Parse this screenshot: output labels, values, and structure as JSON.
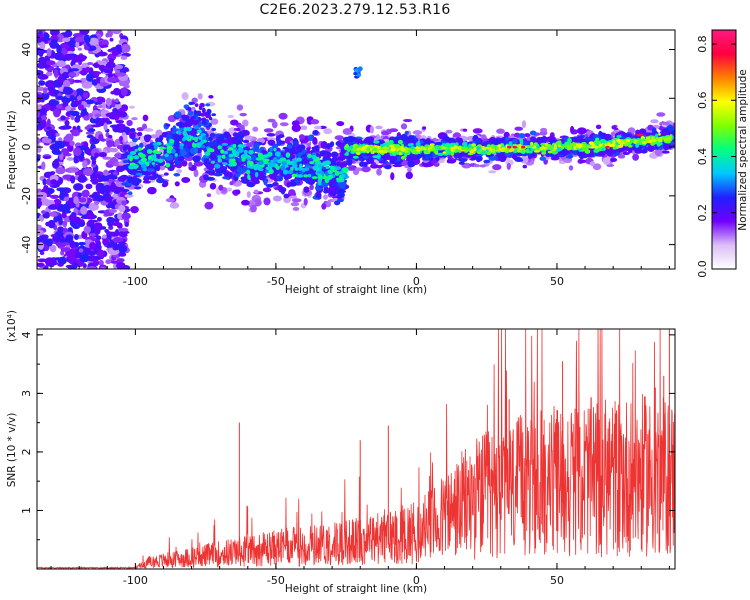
{
  "title": "C2E6.2023.279.12.53.R16",
  "chart_data": [
    {
      "type": "heatmap",
      "xlabel": "Height of straight line (km)",
      "ylabel": "Frequency (Hz)",
      "xlim": [
        -135,
        92
      ],
      "ylim": [
        -50,
        48
      ],
      "x_ticks": [
        -100,
        -50,
        0,
        50
      ],
      "y_ticks": [
        -40,
        -20,
        0,
        20,
        40
      ],
      "colorbar": {
        "label": "Normalized spectral amplitude",
        "range": [
          0,
          0.85
        ],
        "ticks": [
          "0.0",
          "0.2",
          "0.4",
          "0.6",
          "0.8"
        ],
        "colors": [
          "#ffffff",
          "#dcbef8",
          "#7000ff",
          "#2020ff",
          "#00c8ff",
          "#00ff80",
          "#80ff00",
          "#ffff00",
          "#ff8000",
          "#ff0040",
          "#ff1a80"
        ]
      },
      "features": {
        "noise_region_km": [
          -135,
          -105
        ],
        "signal_band_center_hz": 0,
        "isolated_patch": {
          "x_km": -21,
          "y_hz": 31
        }
      }
    },
    {
      "type": "line",
      "xlabel": "Height of straight line (km)",
      "ylabel": "SNR (10 * v/v)",
      "y_scale_label": "(x10⁴)",
      "xlim": [
        -135,
        92
      ],
      "ylim": [
        0,
        4.1
      ],
      "x_ticks": [
        -100,
        -50,
        0,
        50
      ],
      "y_ticks": [
        1,
        2,
        3,
        4
      ],
      "color": "#ee3333",
      "trend": {
        "x": [
          -135,
          -100,
          -95,
          -80,
          -60,
          -40,
          -20,
          0,
          10,
          20,
          40,
          60,
          80,
          92
        ],
        "y": [
          0.01,
          0.03,
          0.15,
          0.25,
          0.4,
          0.5,
          0.6,
          0.8,
          1.1,
          1.5,
          1.8,
          1.95,
          2.0,
          1.95
        ]
      }
    }
  ]
}
